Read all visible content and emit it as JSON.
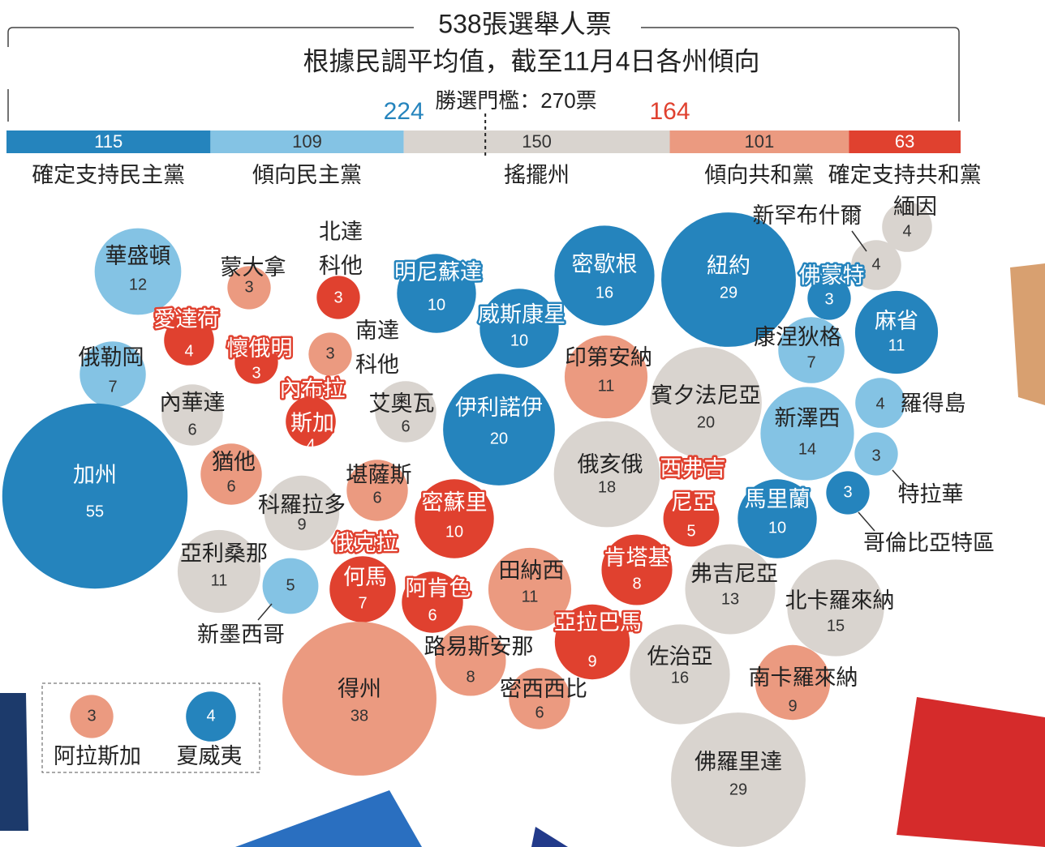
{
  "chart_data": [
    {
      "type": "stacked-bar",
      "title": "538張選舉人票",
      "subtitle": "根據民調平均值，截至11月4日各州傾向",
      "threshold_label": "勝選門檻：270票",
      "threshold": 270,
      "totals": [
        224,
        164
      ],
      "categories": [
        "確定支持民主黨",
        "傾向民主黨",
        "搖擺州",
        "傾向共和黨",
        "確定支持共和黨"
      ],
      "values": [
        115,
        109,
        150,
        101,
        63
      ],
      "colors": [
        "#2584bd",
        "#84c3e4",
        "#d9d4cf",
        "#eb9a80",
        "#e0412f"
      ],
      "xlim": [
        0,
        538
      ]
    },
    {
      "type": "bubble",
      "categories": [
        "華盛頓",
        "蒙大拿",
        "北達科他",
        "明尼蘇達",
        "密歇根",
        "紐約",
        "佛蒙特",
        "新罕布什爾",
        "緬因",
        "麻省",
        "康涅狄格",
        "威斯康星",
        "愛達荷",
        "懷俄明",
        "南達科他",
        "俄勒岡",
        "印第安納",
        "賓夕法尼亞",
        "內華達",
        "內布拉斯加",
        "艾奧瓦",
        "伊利諾伊",
        "新澤西",
        "羅得島",
        "特拉華",
        "加州",
        "猶他",
        "堪薩斯",
        "科羅拉多",
        "密蘇里",
        "俄亥俄",
        "西弗吉尼亞",
        "馬里蘭",
        "哥倫比亞特區",
        "亞利桑那",
        "新墨西哥",
        "俄克拉何馬",
        "阿肯色",
        "田納西",
        "肯塔基",
        "弗吉尼亞",
        "北卡羅來納",
        "得州",
        "路易斯安那",
        "亞拉巴馬",
        "佐治亞",
        "密西西比",
        "南卡羅來納",
        "佛羅里達",
        "阿拉斯加",
        "夏威夷"
      ],
      "values": [
        12,
        3,
        3,
        10,
        16,
        29,
        3,
        4,
        4,
        11,
        7,
        10,
        4,
        3,
        3,
        7,
        11,
        20,
        6,
        4,
        6,
        20,
        14,
        4,
        3,
        55,
        6,
        6,
        9,
        10,
        18,
        5,
        10,
        3,
        11,
        5,
        7,
        6,
        11,
        8,
        13,
        15,
        38,
        8,
        9,
        16,
        6,
        9,
        29,
        3,
        4
      ],
      "colors": [
        "#84c3e4",
        "#eb9a80",
        "#e0412f",
        "#2584bd",
        "#2584bd",
        "#2584bd",
        "#2584bd",
        "#d9d4cf",
        "#d9d4cf",
        "#2584bd",
        "#84c3e4",
        "#2584bd",
        "#e0412f",
        "#e0412f",
        "#eb9a80",
        "#84c3e4",
        "#eb9a80",
        "#d9d4cf",
        "#d9d4cf",
        "#e0412f",
        "#d9d4cf",
        "#2584bd",
        "#84c3e4",
        "#84c3e4",
        "#84c3e4",
        "#2584bd",
        "#eb9a80",
        "#eb9a80",
        "#d9d4cf",
        "#e0412f",
        "#d9d4cf",
        "#e0412f",
        "#2584bd",
        "#2584bd",
        "#d9d4cf",
        "#84c3e4",
        "#e0412f",
        "#e0412f",
        "#eb9a80",
        "#e0412f",
        "#d9d4cf",
        "#d9d4cf",
        "#eb9a80",
        "#eb9a80",
        "#e0412f",
        "#d9d4cf",
        "#eb9a80",
        "#eb9a80",
        "#d9d4cf",
        "#eb9a80",
        "#2584bd"
      ]
    }
  ]
}
